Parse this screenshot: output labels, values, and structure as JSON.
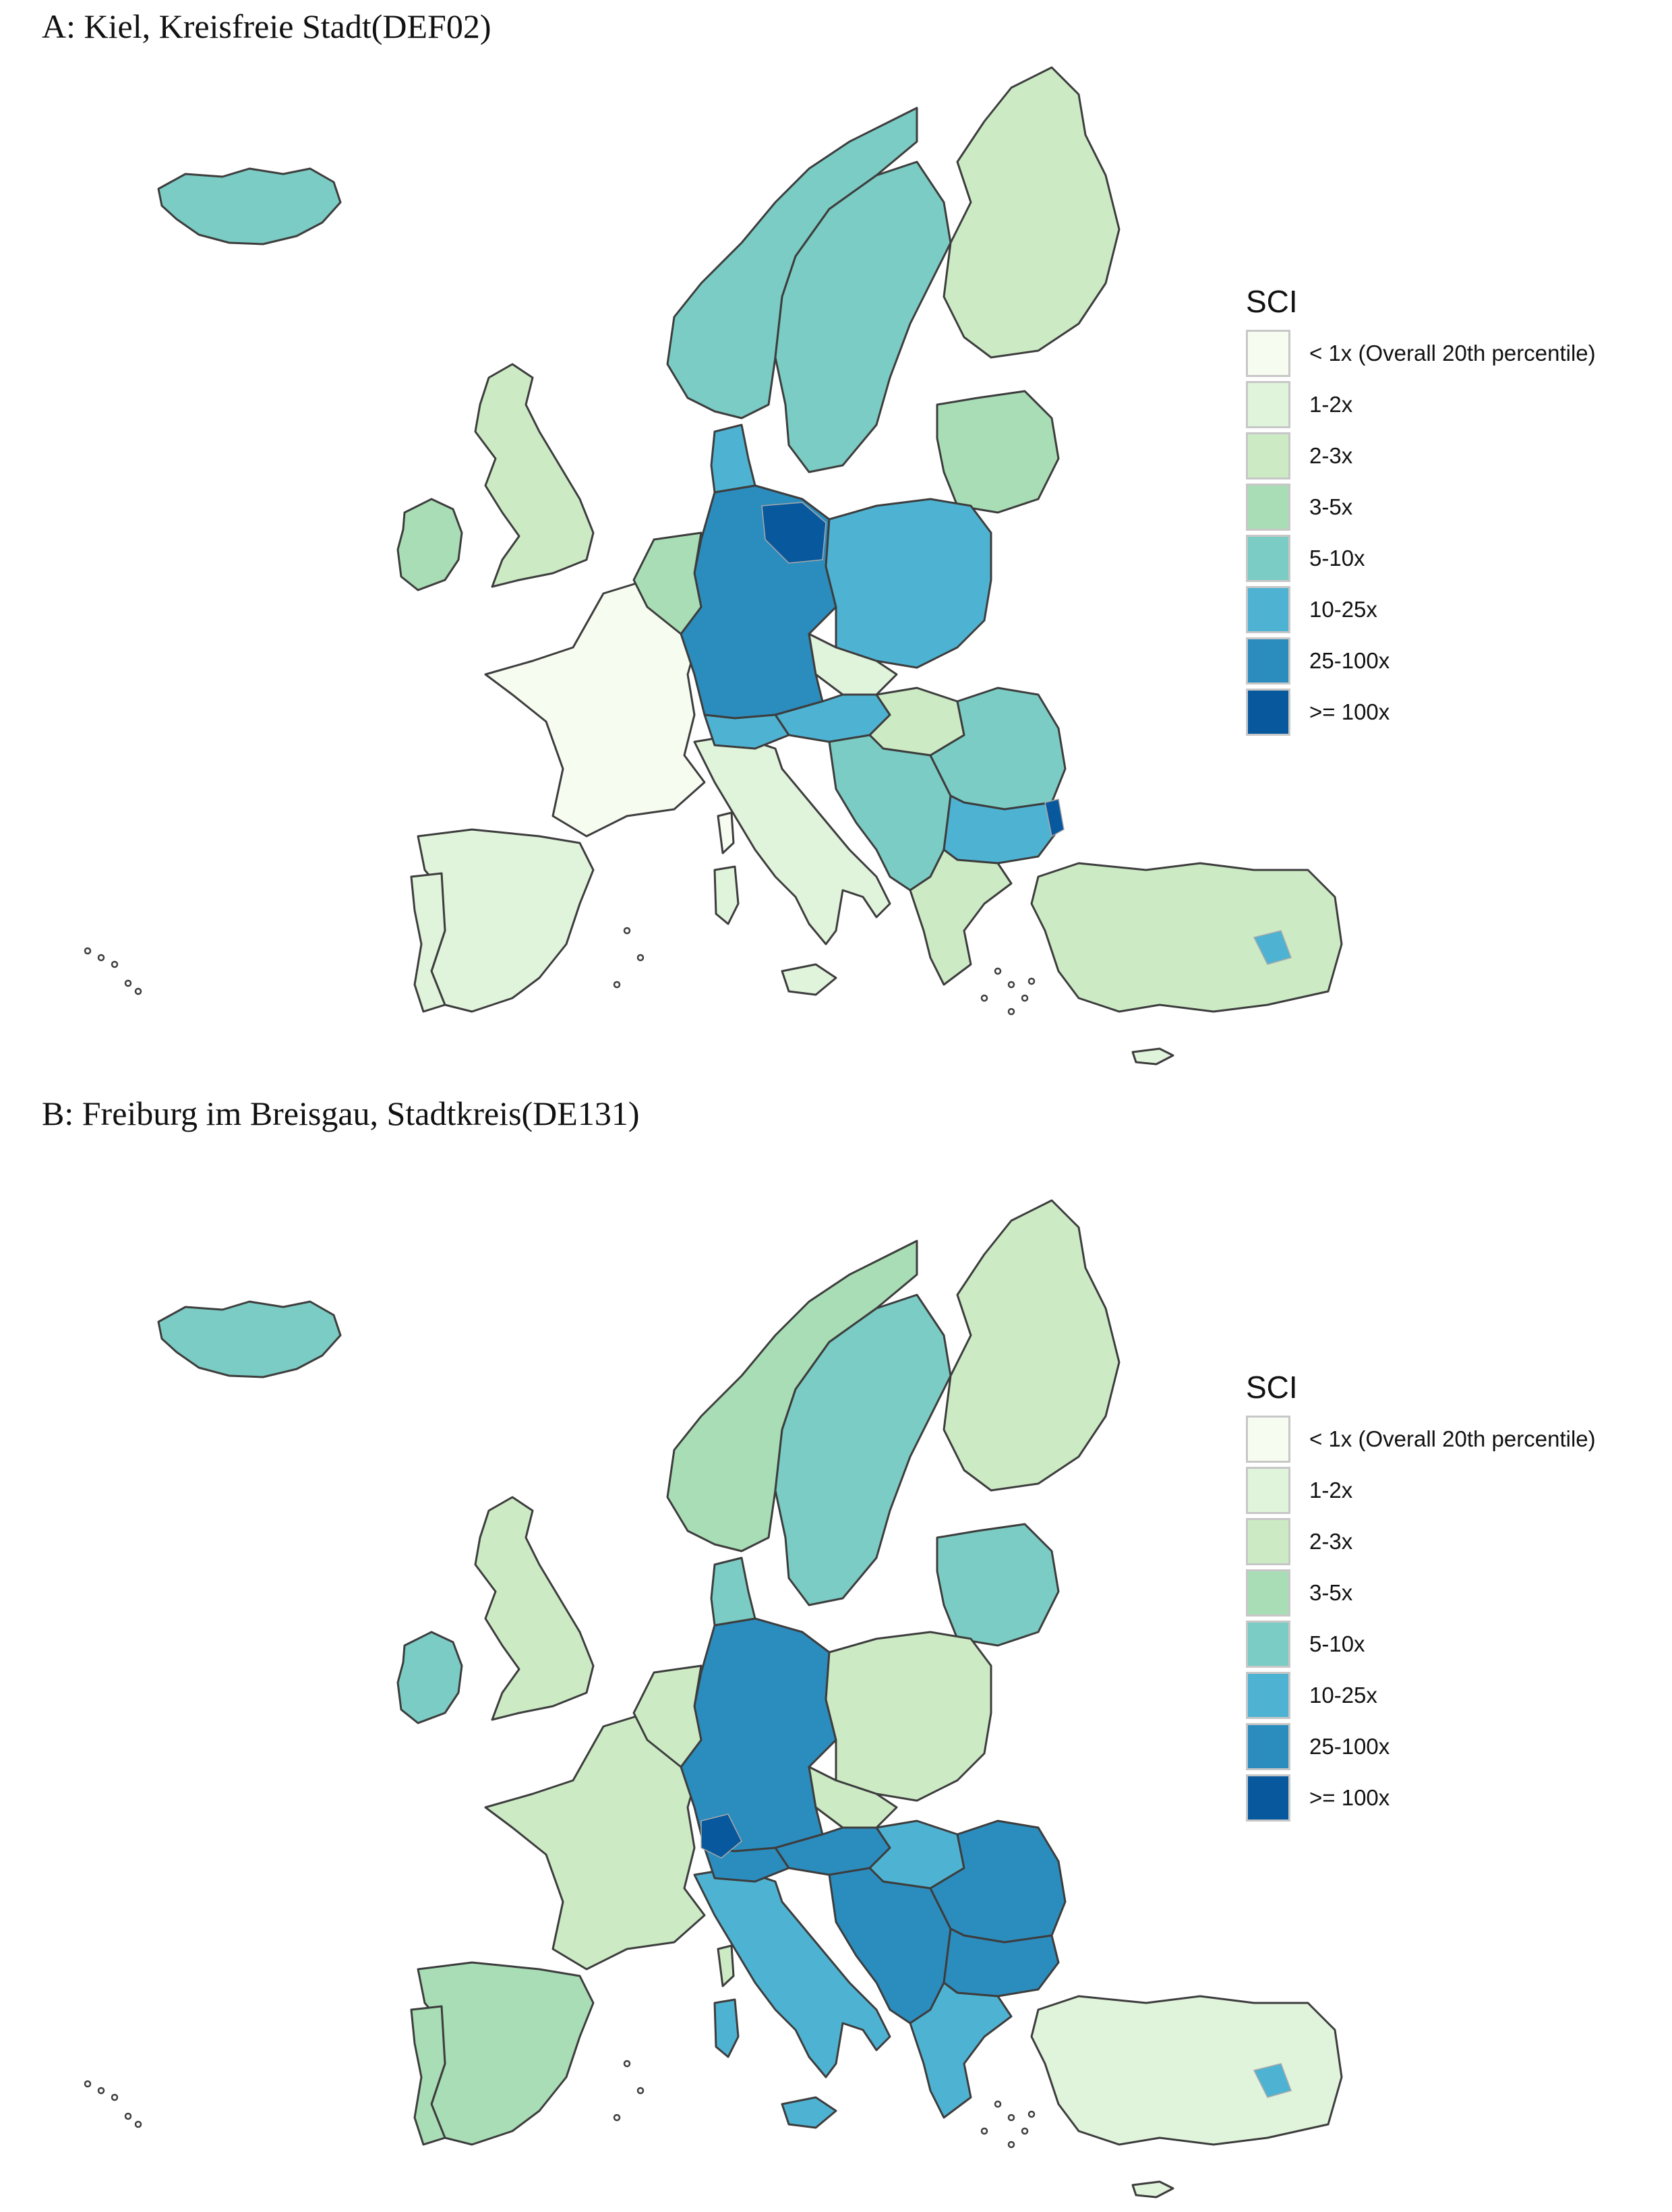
{
  "panels": [
    {
      "id": "A",
      "title": "A: Kiel, Kreisfreie Stadt(DEF02)",
      "regions": {
        "iceland": "5-10x",
        "ireland": "3-5x",
        "uk": "2-3x",
        "france": "< 1x (Overall 20th percentile)",
        "spain": "1-2x",
        "portugal": "1-2x",
        "italy": "1-2x",
        "germany": "25-100x",
        "benelux": "3-5x",
        "denmark": "10-25x",
        "norway": "5-10x",
        "sweden": "5-10x",
        "finland": "2-3x",
        "baltics": "3-5x",
        "poland": "10-25x",
        "czechia": "1-2x",
        "austria": "10-25x",
        "switzerland": "10-25x",
        "hungary": "2-3x",
        "balkans": "5-10x",
        "romania": "5-10x",
        "bulgaria": "10-25x",
        "greece": "2-3x",
        "turkey": "2-3x"
      },
      "hotspots": [
        {
          "region": "northeast-germany",
          "class": ">= 100x"
        },
        {
          "region": "romania-east",
          "class": ">= 100x"
        },
        {
          "region": "turkey-east",
          "class": "10-25x"
        }
      ]
    },
    {
      "id": "B",
      "title": "B: Freiburg im Breisgau, Stadtkreis(DE131)",
      "regions": {
        "iceland": "5-10x",
        "ireland": "5-10x",
        "uk": "2-3x",
        "france": "2-3x",
        "spain": "3-5x",
        "portugal": "3-5x",
        "italy": "10-25x",
        "germany": "25-100x",
        "benelux": "2-3x",
        "denmark": "5-10x",
        "norway": "3-5x",
        "sweden": "5-10x",
        "finland": "2-3x",
        "baltics": "5-10x",
        "poland": "2-3x",
        "czechia": "2-3x",
        "austria": "25-100x",
        "switzerland": "25-100x",
        "hungary": "10-25x",
        "balkans": "25-100x",
        "romania": "25-100x",
        "bulgaria": "25-100x",
        "greece": "10-25x",
        "turkey": "1-2x"
      },
      "hotspots": [
        {
          "region": "southwest-germany",
          "class": ">= 100x"
        },
        {
          "region": "turkey-east",
          "class": "10-25x"
        }
      ]
    }
  ],
  "legend": {
    "title": "SCI",
    "items": [
      {
        "label": "< 1x (Overall 20th percentile)",
        "color": "#f7fcf0"
      },
      {
        "label": "1-2x",
        "color": "#e0f3db"
      },
      {
        "label": "2-3x",
        "color": "#ccebc5"
      },
      {
        "label": "3-5x",
        "color": "#a8ddb5"
      },
      {
        "label": "5-10x",
        "color": "#7bccc4"
      },
      {
        "label": "10-25x",
        "color": "#4eb3d3"
      },
      {
        "label": "25-100x",
        "color": "#2b8cbe"
      },
      {
        "label": ">= 100x",
        "color": "#08589e"
      }
    ]
  },
  "style": {
    "border_color": "#3d3d3d",
    "inner_border_color": "#a9a9a9"
  }
}
